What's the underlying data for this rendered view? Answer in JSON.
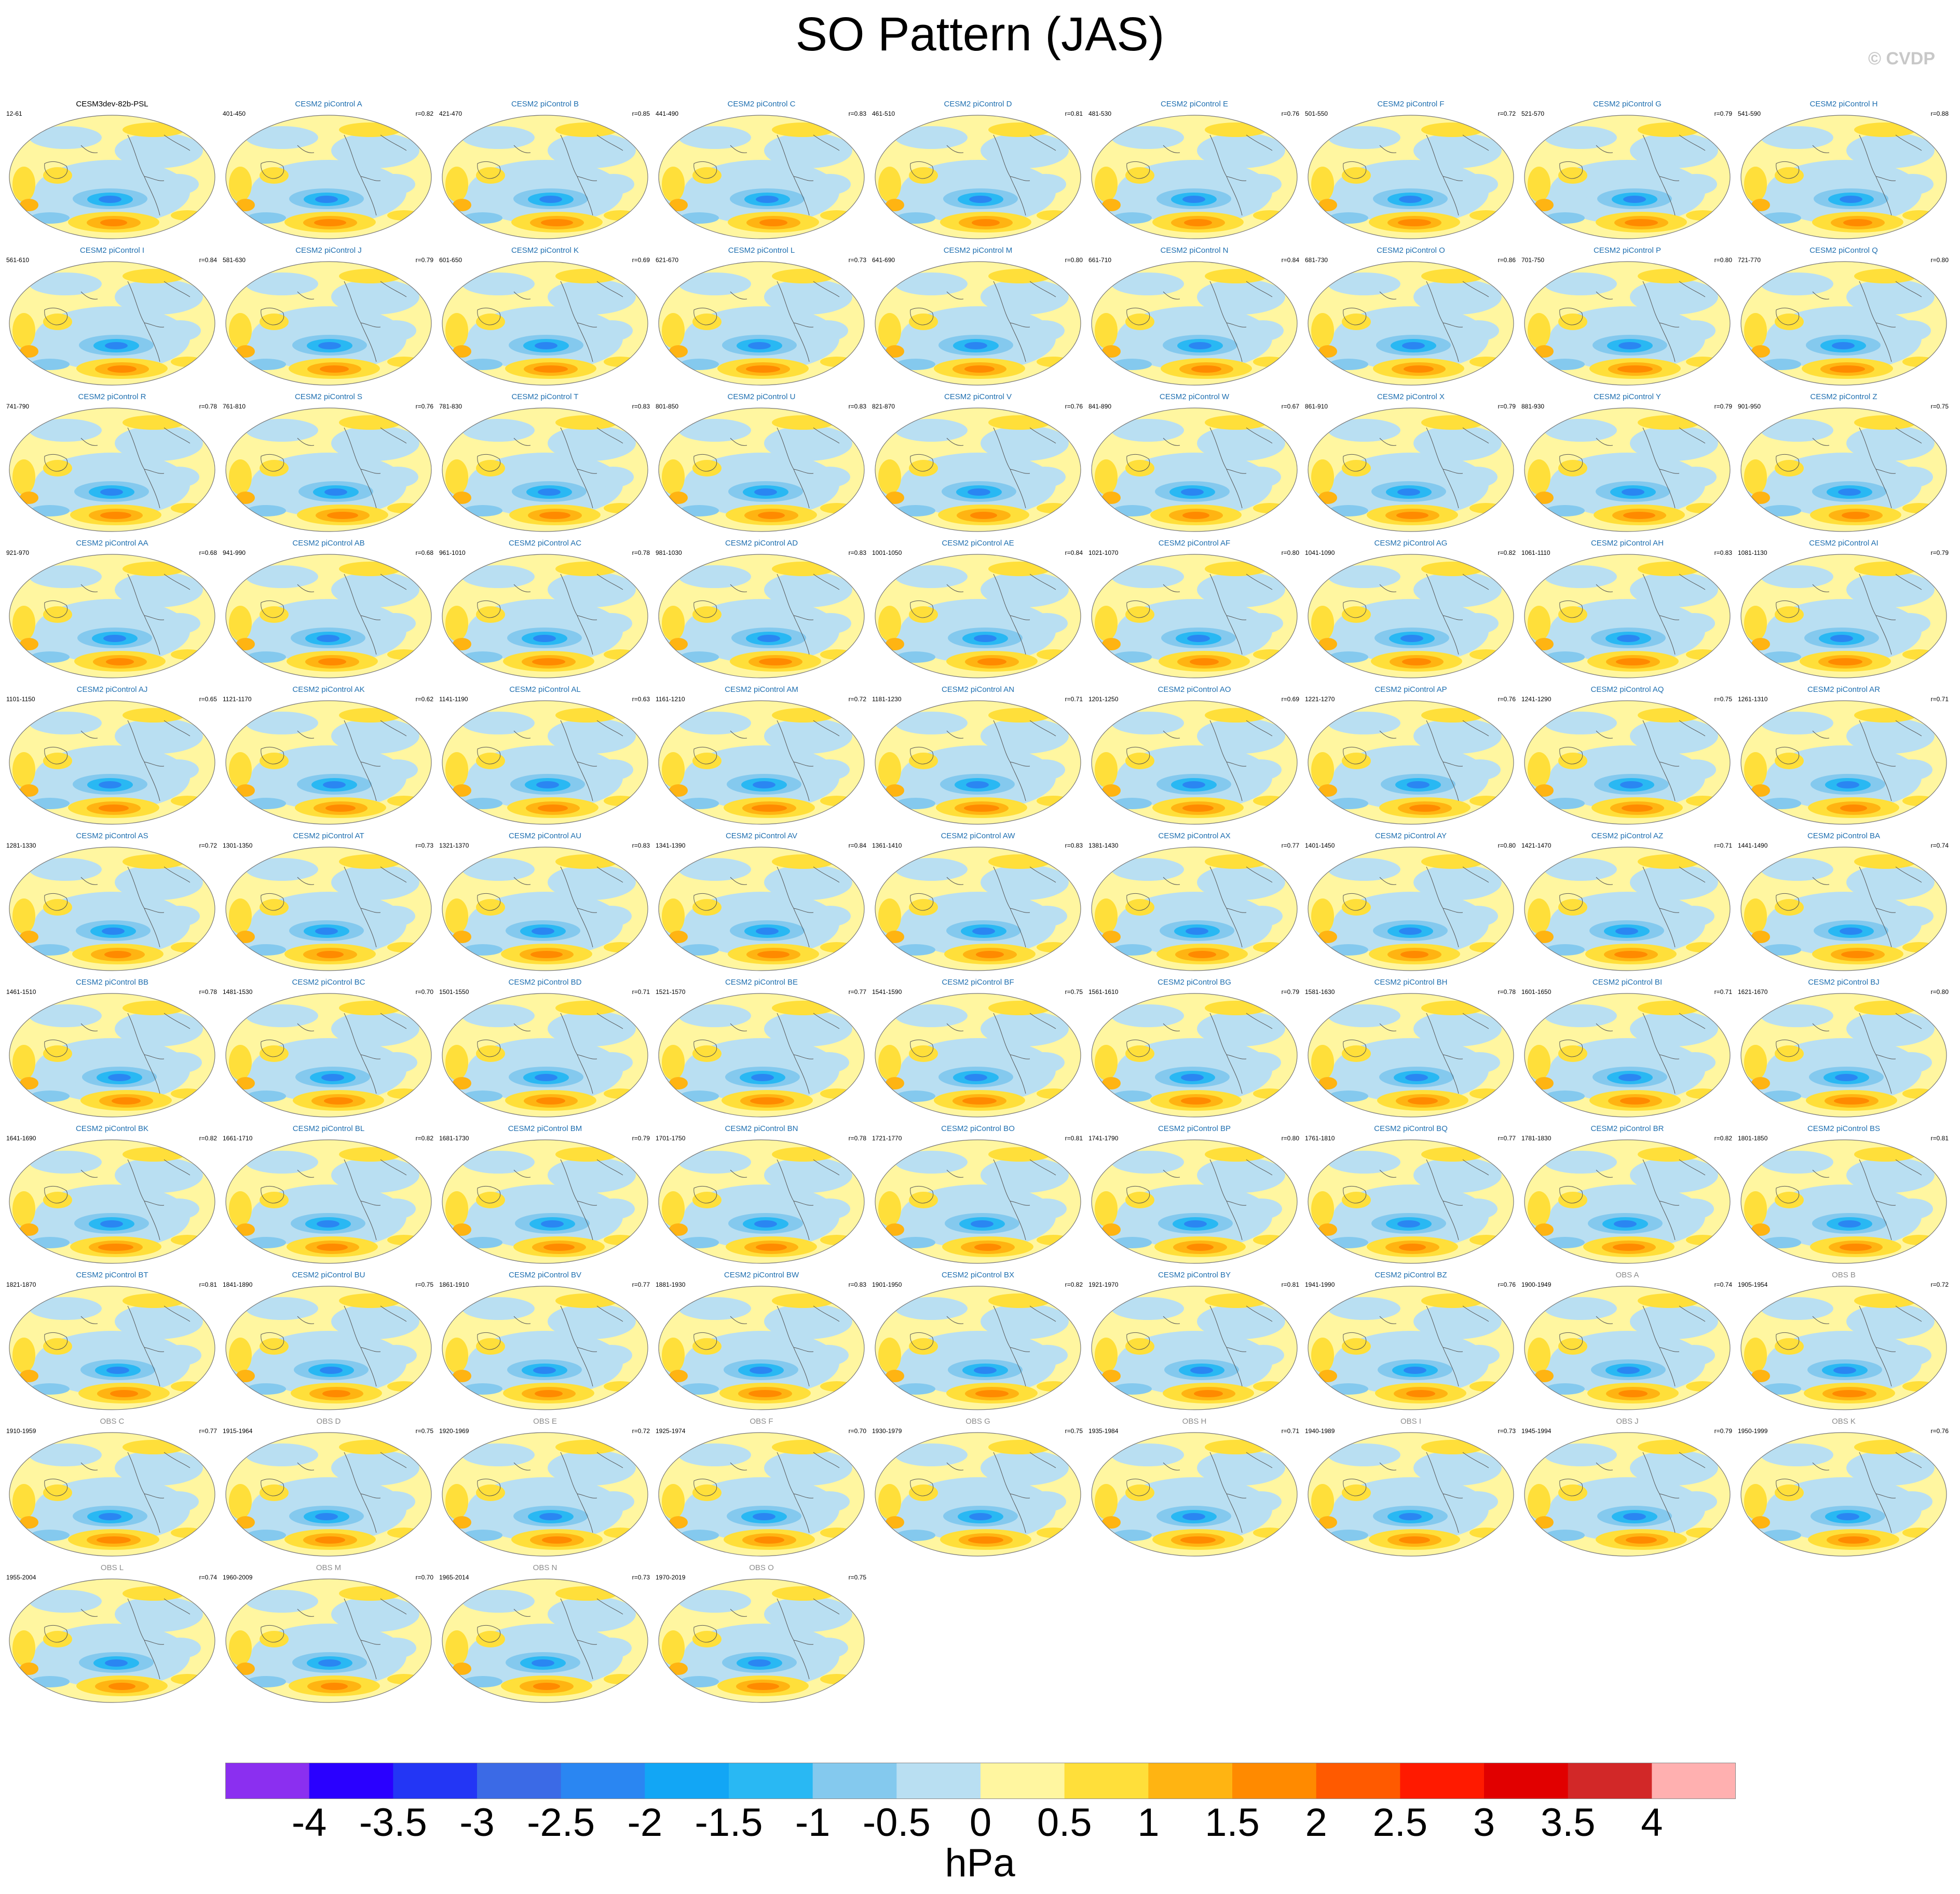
{
  "title": "SO Pattern (JAS)",
  "watermark": "© CVDP",
  "chart_data": {
    "type": "panel-grid of contour maps",
    "variable": "PSL",
    "title": "SO Pattern (JAS)",
    "units": "hPa",
    "colorbar": {
      "levels": [
        -4,
        -3.5,
        -3,
        -2.5,
        -2,
        -1.5,
        -1,
        -0.5,
        0,
        0.5,
        1,
        1.5,
        2,
        2.5,
        3,
        3.5,
        4
      ],
      "tick_labels": [
        "-4",
        "-3.5",
        "-3",
        "-2.5",
        "-2",
        "-1.5",
        "-1",
        "-0.5",
        "0",
        "0.5",
        "1",
        "1.5",
        "2",
        "2.5",
        "3",
        "3.5",
        "4"
      ],
      "colors": [
        "#8b2ff0",
        "#2a00ff",
        "#2336f5",
        "#3b6ae6",
        "#2a86f2",
        "#12a6f5",
        "#29b8f3",
        "#84c9ee",
        "#b9dff2",
        "#fff6a0",
        "#ffdf3a",
        "#ffb412",
        "#ff8a00",
        "#ff5a00",
        "#ff1a00",
        "#e10000",
        "#d22828",
        "#ffb0b0"
      ]
    },
    "panels": [
      {
        "title": "CESM3dev-82b-PSL",
        "years": "12-61",
        "r": ""
      },
      {
        "title": "CESM2 piControl A",
        "years": "401-450",
        "r": "r=0.82"
      },
      {
        "title": "CESM2 piControl B",
        "years": "421-470",
        "r": "r=0.85"
      },
      {
        "title": "CESM2 piControl C",
        "years": "441-490",
        "r": "r=0.83"
      },
      {
        "title": "CESM2 piControl D",
        "years": "461-510",
        "r": "r=0.81"
      },
      {
        "title": "CESM2 piControl E",
        "years": "481-530",
        "r": "r=0.76"
      },
      {
        "title": "CESM2 piControl F",
        "years": "501-550",
        "r": "r=0.72"
      },
      {
        "title": "CESM2 piControl G",
        "years": "521-570",
        "r": "r=0.79"
      },
      {
        "title": "CESM2 piControl H",
        "years": "541-590",
        "r": "r=0.88"
      },
      {
        "title": "CESM2 piControl I",
        "years": "561-610",
        "r": "r=0.84"
      },
      {
        "title": "CESM2 piControl J",
        "years": "581-630",
        "r": "r=0.79"
      },
      {
        "title": "CESM2 piControl K",
        "years": "601-650",
        "r": "r=0.69"
      },
      {
        "title": "CESM2 piControl L",
        "years": "621-670",
        "r": "r=0.73"
      },
      {
        "title": "CESM2 piControl M",
        "years": "641-690",
        "r": "r=0.80"
      },
      {
        "title": "CESM2 piControl N",
        "years": "661-710",
        "r": "r=0.84"
      },
      {
        "title": "CESM2 piControl O",
        "years": "681-730",
        "r": "r=0.86"
      },
      {
        "title": "CESM2 piControl P",
        "years": "701-750",
        "r": "r=0.80"
      },
      {
        "title": "CESM2 piControl Q",
        "years": "721-770",
        "r": "r=0.80"
      },
      {
        "title": "CESM2 piControl R",
        "years": "741-790",
        "r": "r=0.78"
      },
      {
        "title": "CESM2 piControl S",
        "years": "761-810",
        "r": "r=0.76"
      },
      {
        "title": "CESM2 piControl T",
        "years": "781-830",
        "r": "r=0.83"
      },
      {
        "title": "CESM2 piControl U",
        "years": "801-850",
        "r": "r=0.83"
      },
      {
        "title": "CESM2 piControl V",
        "years": "821-870",
        "r": "r=0.76"
      },
      {
        "title": "CESM2 piControl W",
        "years": "841-890",
        "r": "r=0.67"
      },
      {
        "title": "CESM2 piControl X",
        "years": "861-910",
        "r": "r=0.79"
      },
      {
        "title": "CESM2 piControl Y",
        "years": "881-930",
        "r": "r=0.79"
      },
      {
        "title": "CESM2 piControl Z",
        "years": "901-950",
        "r": "r=0.75"
      },
      {
        "title": "CESM2 piControl AA",
        "years": "921-970",
        "r": "r=0.68"
      },
      {
        "title": "CESM2 piControl AB",
        "years": "941-990",
        "r": "r=0.68"
      },
      {
        "title": "CESM2 piControl AC",
        "years": "961-1010",
        "r": "r=0.78"
      },
      {
        "title": "CESM2 piControl AD",
        "years": "981-1030",
        "r": "r=0.83"
      },
      {
        "title": "CESM2 piControl AE",
        "years": "1001-1050",
        "r": "r=0.84"
      },
      {
        "title": "CESM2 piControl AF",
        "years": "1021-1070",
        "r": "r=0.80"
      },
      {
        "title": "CESM2 piControl AG",
        "years": "1041-1090",
        "r": "r=0.82"
      },
      {
        "title": "CESM2 piControl AH",
        "years": "1061-1110",
        "r": "r=0.83"
      },
      {
        "title": "CESM2 piControl AI",
        "years": "1081-1130",
        "r": "r=0.79"
      },
      {
        "title": "CESM2 piControl AJ",
        "years": "1101-1150",
        "r": "r=0.65"
      },
      {
        "title": "CESM2 piControl AK",
        "years": "1121-1170",
        "r": "r=0.62"
      },
      {
        "title": "CESM2 piControl AL",
        "years": "1141-1190",
        "r": "r=0.63"
      },
      {
        "title": "CESM2 piControl AM",
        "years": "1161-1210",
        "r": "r=0.72"
      },
      {
        "title": "CESM2 piControl AN",
        "years": "1181-1230",
        "r": "r=0.71"
      },
      {
        "title": "CESM2 piControl AO",
        "years": "1201-1250",
        "r": "r=0.69"
      },
      {
        "title": "CESM2 piControl AP",
        "years": "1221-1270",
        "r": "r=0.76"
      },
      {
        "title": "CESM2 piControl AQ",
        "years": "1241-1290",
        "r": "r=0.75"
      },
      {
        "title": "CESM2 piControl AR",
        "years": "1261-1310",
        "r": "r=0.71"
      },
      {
        "title": "CESM2 piControl AS",
        "years": "1281-1330",
        "r": "r=0.72"
      },
      {
        "title": "CESM2 piControl AT",
        "years": "1301-1350",
        "r": "r=0.73"
      },
      {
        "title": "CESM2 piControl AU",
        "years": "1321-1370",
        "r": "r=0.83"
      },
      {
        "title": "CESM2 piControl AV",
        "years": "1341-1390",
        "r": "r=0.84"
      },
      {
        "title": "CESM2 piControl AW",
        "years": "1361-1410",
        "r": "r=0.83"
      },
      {
        "title": "CESM2 piControl AX",
        "years": "1381-1430",
        "r": "r=0.77"
      },
      {
        "title": "CESM2 piControl AY",
        "years": "1401-1450",
        "r": "r=0.80"
      },
      {
        "title": "CESM2 piControl AZ",
        "years": "1421-1470",
        "r": "r=0.71"
      },
      {
        "title": "CESM2 piControl BA",
        "years": "1441-1490",
        "r": "r=0.74"
      },
      {
        "title": "CESM2 piControl BB",
        "years": "1461-1510",
        "r": "r=0.78"
      },
      {
        "title": "CESM2 piControl BC",
        "years": "1481-1530",
        "r": "r=0.70"
      },
      {
        "title": "CESM2 piControl BD",
        "years": "1501-1550",
        "r": "r=0.71"
      },
      {
        "title": "CESM2 piControl BE",
        "years": "1521-1570",
        "r": "r=0.77"
      },
      {
        "title": "CESM2 piControl BF",
        "years": "1541-1590",
        "r": "r=0.75"
      },
      {
        "title": "CESM2 piControl BG",
        "years": "1561-1610",
        "r": "r=0.79"
      },
      {
        "title": "CESM2 piControl BH",
        "years": "1581-1630",
        "r": "r=0.78"
      },
      {
        "title": "CESM2 piControl BI",
        "years": "1601-1650",
        "r": "r=0.71"
      },
      {
        "title": "CESM2 piControl BJ",
        "years": "1621-1670",
        "r": "r=0.80"
      },
      {
        "title": "CESM2 piControl BK",
        "years": "1641-1690",
        "r": "r=0.82"
      },
      {
        "title": "CESM2 piControl BL",
        "years": "1661-1710",
        "r": "r=0.82"
      },
      {
        "title": "CESM2 piControl BM",
        "years": "1681-1730",
        "r": "r=0.79"
      },
      {
        "title": "CESM2 piControl BN",
        "years": "1701-1750",
        "r": "r=0.78"
      },
      {
        "title": "CESM2 piControl BO",
        "years": "1721-1770",
        "r": "r=0.81"
      },
      {
        "title": "CESM2 piControl BP",
        "years": "1741-1790",
        "r": "r=0.80"
      },
      {
        "title": "CESM2 piControl BQ",
        "years": "1761-1810",
        "r": "r=0.77"
      },
      {
        "title": "CESM2 piControl BR",
        "years": "1781-1830",
        "r": "r=0.82"
      },
      {
        "title": "CESM2 piControl BS",
        "years": "1801-1850",
        "r": "r=0.81"
      },
      {
        "title": "CESM2 piControl BT",
        "years": "1821-1870",
        "r": "r=0.81"
      },
      {
        "title": "CESM2 piControl BU",
        "years": "1841-1890",
        "r": "r=0.75"
      },
      {
        "title": "CESM2 piControl BV",
        "years": "1861-1910",
        "r": "r=0.77"
      },
      {
        "title": "CESM2 piControl BW",
        "years": "1881-1930",
        "r": "r=0.83"
      },
      {
        "title": "CESM2 piControl BX",
        "years": "1901-1950",
        "r": "r=0.82"
      },
      {
        "title": "CESM2 piControl BY",
        "years": "1921-1970",
        "r": "r=0.81"
      },
      {
        "title": "CESM2 piControl BZ",
        "years": "1941-1990",
        "r": "r=0.76"
      },
      {
        "title": "OBS A",
        "years": "1900-1949",
        "r": "r=0.74"
      },
      {
        "title": "OBS B",
        "years": "1905-1954",
        "r": "r=0.72"
      },
      {
        "title": "OBS C",
        "years": "1910-1959",
        "r": "r=0.77"
      },
      {
        "title": "OBS D",
        "years": "1915-1964",
        "r": "r=0.75"
      },
      {
        "title": "OBS E",
        "years": "1920-1969",
        "r": "r=0.72"
      },
      {
        "title": "OBS F",
        "years": "1925-1974",
        "r": "r=0.70"
      },
      {
        "title": "OBS G",
        "years": "1930-1979",
        "r": "r=0.75"
      },
      {
        "title": "OBS H",
        "years": "1935-1984",
        "r": "r=0.71"
      },
      {
        "title": "OBS I",
        "years": "1940-1989",
        "r": "r=0.73"
      },
      {
        "title": "OBS J",
        "years": "1945-1994",
        "r": "r=0.79"
      },
      {
        "title": "OBS K",
        "years": "1950-1999",
        "r": "r=0.76"
      },
      {
        "title": "OBS L",
        "years": "1955-2004",
        "r": "r=0.74"
      },
      {
        "title": "OBS M",
        "years": "1960-2009",
        "r": "r=0.70"
      },
      {
        "title": "OBS N",
        "years": "1965-2014",
        "r": "r=0.73"
      },
      {
        "title": "OBS O",
        "years": "1970-2019",
        "r": "r=0.75"
      }
    ]
  }
}
